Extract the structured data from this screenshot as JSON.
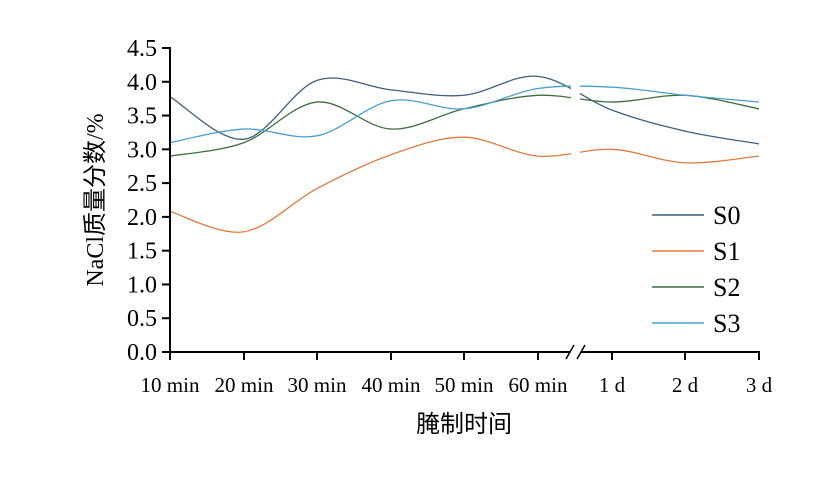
{
  "chart_data": {
    "type": "line",
    "title": "",
    "xlabel": "腌制时间",
    "ylabel": "NaCl质量分数/%",
    "categories": [
      "10 min",
      "20 min",
      "30 min",
      "40 min",
      "50 min",
      "60 min",
      "1 d",
      "2 d",
      "3 d"
    ],
    "axis_break_after": "60 min",
    "ylim": [
      0,
      4.5
    ],
    "yticks": [
      "0.0",
      "0.5",
      "1.0",
      "1.5",
      "2.0",
      "2.5",
      "3.0",
      "3.5",
      "4.0",
      "4.5"
    ],
    "legend_position": "bottom-right",
    "grid": false,
    "series": [
      {
        "name": "S0",
        "color": "#3f5f7f",
        "values": [
          3.78,
          3.15,
          4.02,
          3.88,
          3.8,
          4.08,
          3.58,
          3.27,
          3.08
        ]
      },
      {
        "name": "S1",
        "color": "#e07b3c",
        "values": [
          2.08,
          1.78,
          2.42,
          2.92,
          3.18,
          2.9,
          3.0,
          2.8,
          2.9
        ]
      },
      {
        "name": "S2",
        "color": "#3f6e3f",
        "values": [
          2.9,
          3.1,
          3.7,
          3.3,
          3.6,
          3.8,
          3.7,
          3.8,
          3.6
        ]
      },
      {
        "name": "S3",
        "color": "#4aa0cc",
        "values": [
          3.1,
          3.3,
          3.2,
          3.72,
          3.6,
          3.9,
          3.92,
          3.8,
          3.7
        ]
      }
    ]
  }
}
